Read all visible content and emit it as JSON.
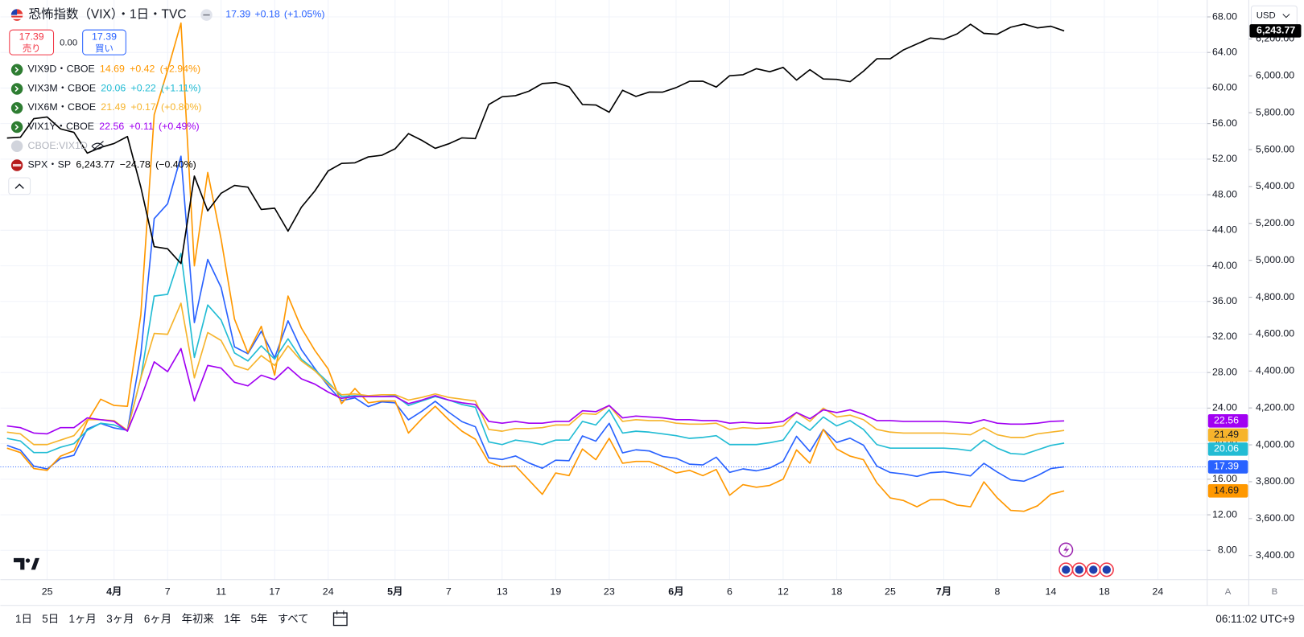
{
  "header": {
    "sell": {
      "price": "17.39",
      "label": "売り"
    },
    "spread": "0.00",
    "buy": {
      "price": "17.39",
      "label": "買い"
    },
    "currency": "USD"
  },
  "legend_hidden": "CBOE:VIX1D",
  "toolbar": {
    "ranges": [
      "1日",
      "5日",
      "1ヶ月",
      "3ヶ月",
      "6ヶ月",
      "年初来",
      "1年",
      "5年",
      "すべて"
    ],
    "time": "06:11:02 UTC+9",
    "scale_buttons": [
      "A",
      "B"
    ]
  },
  "chart_data": {
    "type": "line",
    "categories": [
      null,
      null,
      null,
      "25",
      null,
      null,
      null,
      null,
      "4月",
      null,
      null,
      null,
      "7",
      null,
      null,
      null,
      "11",
      null,
      null,
      null,
      "17",
      null,
      null,
      null,
      "24",
      null,
      null,
      null,
      null,
      "5月",
      null,
      null,
      null,
      "7",
      null,
      null,
      null,
      "13",
      null,
      null,
      null,
      "19",
      null,
      null,
      null,
      "23",
      null,
      null,
      null,
      null,
      "6月",
      null,
      null,
      null,
      "6",
      null,
      null,
      null,
      "12",
      null,
      null,
      null,
      "18",
      null,
      null,
      null,
      "25",
      null,
      null,
      null,
      "7月",
      null,
      null,
      null,
      "8",
      null,
      null,
      null,
      "14",
      null,
      null,
      null,
      "18",
      null,
      null,
      null,
      "24"
    ],
    "ylim": [
      4.7,
      69.9
    ],
    "yticks": [
      {
        "value": 8,
        "label": "8.00"
      },
      {
        "value": 12,
        "label": "12.00"
      },
      {
        "value": 16,
        "label": "16.00"
      },
      {
        "value": 20,
        "label": "20.00"
      },
      {
        "value": 24,
        "label": "24.00"
      },
      {
        "value": 28,
        "label": "28.00"
      },
      {
        "value": 32,
        "label": "32.00"
      },
      {
        "value": 36,
        "label": "36.00"
      },
      {
        "value": 40,
        "label": "40.00"
      },
      {
        "value": 44,
        "label": "44.00"
      },
      {
        "value": 48,
        "label": "48.00"
      },
      {
        "value": 52,
        "label": "52.00"
      },
      {
        "value": 56,
        "label": "56.00"
      },
      {
        "value": 60,
        "label": "60.00"
      },
      {
        "value": 64,
        "label": "64.00"
      },
      {
        "value": 68,
        "label": "68.00"
      }
    ],
    "y2lim": [
      3269,
      6411
    ],
    "y2ticks": [
      {
        "value": 3400,
        "label": "3,400.00"
      },
      {
        "value": 3600,
        "label": "3,600.00"
      },
      {
        "value": 3800,
        "label": "3,800.00"
      },
      {
        "value": 4000,
        "label": "4,000.00"
      },
      {
        "value": 4200,
        "label": "4,200.00"
      },
      {
        "value": 4400,
        "label": "4,400.00"
      },
      {
        "value": 4600,
        "label": "4,600.00"
      },
      {
        "value": 4800,
        "label": "4,800.00"
      },
      {
        "value": 5000,
        "label": "5,000.00"
      },
      {
        "value": 5200,
        "label": "5,200.00"
      },
      {
        "value": 5400,
        "label": "5,400.00"
      },
      {
        "value": 5600,
        "label": "5,600.00"
      },
      {
        "value": 5800,
        "label": "5,800.00"
      },
      {
        "value": 6000,
        "label": "6,000.00"
      },
      {
        "value": 6200,
        "label": "6,200.00"
      }
    ],
    "grid": true,
    "series": [
      {
        "name": "恐怖指数（VIX）・1日・TVC",
        "color": "#2962ff",
        "last": "17.39",
        "change": "+0.18",
        "change_pct": "(+1.05%)",
        "values": [
          19.8,
          19.28,
          17.48,
          17.15,
          18.33,
          18.69,
          21.65,
          22.28,
          21.77,
          21.51,
          30.02,
          45.31,
          46.98,
          52.33,
          33.62,
          40.72,
          37.56,
          30.89,
          30.12,
          32.64,
          29.65,
          33.82,
          30.57,
          28.45,
          26.47,
          24.84,
          25.15,
          24.17,
          24.7,
          24.6,
          22.68,
          23.64,
          24.76,
          23.55,
          22.48,
          21.9,
          18.39,
          18.22,
          18.62,
          17.83,
          17.24,
          18.14,
          18.09,
          20.87,
          20.28,
          22.29,
          18.96,
          19.31,
          19.18,
          18.57,
          18.36,
          17.69,
          17.61,
          18.48,
          16.77,
          17.16,
          16.95,
          17.26,
          18.02,
          20.82,
          19.11,
          21.6,
          20.14,
          20.62,
          19.83,
          17.48,
          16.76,
          16.59,
          16.32,
          16.73,
          16.83,
          16.64,
          16.38,
          17.79,
          16.81,
          15.94,
          15.78,
          16.4,
          17.2,
          17.39,
          null,
          null,
          null,
          null,
          null,
          null,
          null
        ]
      },
      {
        "name": "VIX9D・CBOE",
        "color": "#ff9800",
        "last": "14.69",
        "change": "+0.42",
        "change_pct": "(+2.94%)",
        "values": [
          19.5,
          19.0,
          17.2,
          17.0,
          18.6,
          19.2,
          22.5,
          25.0,
          24.3,
          24.2,
          34.5,
          57,
          62,
          67.3,
          40.0,
          50.5,
          43.0,
          34.0,
          30.2,
          33.2,
          27.7,
          36.6,
          33.0,
          30.5,
          28.4,
          24.5,
          26.2,
          24.6,
          24.8,
          24.8,
          21.2,
          22.8,
          24.2,
          22.7,
          21.4,
          20.5,
          17.9,
          17.4,
          17.5,
          15.9,
          14.3,
          16.7,
          16.4,
          19.4,
          18.2,
          20.6,
          17.8,
          18.0,
          18.0,
          17.4,
          16.7,
          17.0,
          16.4,
          17.1,
          14.2,
          15.4,
          15.1,
          15.3,
          16.0,
          19.3,
          17.8,
          21.6,
          19.4,
          18.6,
          18.2,
          15.6,
          13.9,
          13.6,
          12.9,
          13.7,
          13.7,
          13.1,
          12.9,
          15.7,
          13.9,
          12.5,
          12.4,
          13.0,
          14.3,
          14.69,
          null,
          null,
          null,
          null,
          null,
          null,
          null
        ]
      },
      {
        "name": "VIX3M・CBOE",
        "color": "#22bcd4",
        "last": "20.06",
        "change": "+0.22",
        "change_pct": "(+1.11%)",
        "values": [
          20.6,
          20.3,
          19.0,
          19.0,
          19.6,
          20.0,
          21.5,
          22.3,
          22.1,
          21.5,
          27.4,
          36.6,
          36.8,
          41.4,
          29.7,
          35.6,
          33.9,
          30.2,
          29.3,
          31.0,
          29.5,
          31.8,
          29.5,
          28.3,
          26.9,
          25.3,
          25.4,
          25.3,
          25.3,
          25.4,
          24.3,
          24.8,
          25.3,
          24.9,
          24.4,
          24.1,
          20.2,
          19.9,
          20.4,
          20.2,
          19.9,
          20.4,
          20.4,
          22.5,
          22.1,
          23.8,
          21.2,
          21.4,
          21.3,
          21.1,
          20.9,
          20.6,
          20.7,
          20.9,
          19.9,
          19.9,
          19.9,
          20.1,
          20.4,
          22.5,
          21.5,
          23.0,
          22.0,
          22.6,
          21.6,
          19.9,
          19.5,
          19.5,
          19.5,
          19.5,
          19.5,
          19.4,
          19.2,
          20.4,
          19.5,
          18.9,
          18.8,
          19.3,
          19.8,
          20.06,
          null,
          null,
          null,
          null,
          null,
          null,
          null
        ]
      },
      {
        "name": "VIX6M・CBOE",
        "color": "#f6b42c",
        "last": "21.49",
        "change": "+0.17",
        "change_pct": "(+0.80%)",
        "values": [
          21.3,
          21.1,
          19.9,
          19.9,
          20.4,
          20.9,
          22.7,
          22.7,
          22.6,
          21.5,
          27.4,
          32.4,
          32.3,
          35.8,
          27.4,
          32.5,
          31.6,
          28.8,
          28.3,
          29.9,
          28.8,
          31.0,
          29.3,
          28.2,
          26.7,
          25.5,
          25.6,
          25.4,
          25.5,
          25.5,
          24.9,
          25.2,
          25.6,
          25.2,
          25.0,
          24.8,
          21.6,
          21.4,
          21.7,
          21.7,
          21.8,
          22.1,
          22.1,
          23.4,
          23.3,
          24.3,
          22.5,
          22.7,
          22.6,
          22.6,
          22.3,
          22.2,
          22.2,
          22.3,
          21.6,
          21.8,
          21.7,
          21.8,
          22.0,
          23.5,
          22.5,
          24.0,
          23.0,
          23.2,
          22.7,
          21.6,
          21.3,
          21.2,
          21.2,
          21.2,
          21.2,
          21.1,
          21.0,
          21.8,
          21.0,
          20.7,
          20.7,
          21.1,
          21.3,
          21.49,
          null,
          null,
          null,
          null,
          null,
          null,
          null
        ]
      },
      {
        "name": "VIX1Y・CBOE",
        "color": "#a100f2",
        "last": "22.56",
        "change": "+0.11",
        "change_pct": "(+0.49%)",
        "values": [
          22.0,
          21.8,
          21.2,
          21.1,
          21.8,
          21.8,
          22.9,
          22.7,
          22.5,
          21.4,
          25.1,
          29.2,
          28.1,
          30.7,
          24.8,
          28.8,
          28.5,
          26.9,
          26.5,
          27.7,
          27.2,
          28.6,
          27.3,
          26.7,
          25.8,
          25.1,
          25.3,
          25.3,
          25.3,
          25.3,
          24.5,
          24.9,
          25.4,
          24.9,
          24.6,
          24.4,
          22.5,
          22.3,
          22.5,
          22.3,
          22.3,
          22.5,
          22.5,
          23.7,
          23.6,
          24.3,
          22.9,
          23.1,
          23.0,
          22.9,
          22.7,
          22.7,
          22.6,
          22.6,
          22.3,
          22.4,
          22.3,
          22.3,
          22.5,
          23.5,
          22.8,
          23.8,
          23.5,
          23.8,
          23.3,
          22.6,
          22.6,
          22.5,
          22.5,
          22.5,
          22.5,
          22.4,
          22.3,
          22.7,
          22.3,
          22.2,
          22.2,
          22.3,
          22.5,
          22.56,
          null,
          null,
          null,
          null,
          null,
          null,
          null
        ]
      },
      {
        "name": "SPX・SP",
        "color": "#000000",
        "axis": "y2",
        "last": "6,243.77",
        "change": "−24.78",
        "change_pct": "(−0.40%)",
        "values": [
          5662.89,
          5667.56,
          5767.57,
          5776.65,
          5712.2,
          5693.31,
          5580.94,
          5611.85,
          5633.07,
          5670.97,
          5396.52,
          5074.08,
          5062.25,
          4982.77,
          5456.9,
          5268.05,
          5363.36,
          5405.97,
          5396.63,
          5275.7,
          5282.7,
          5158.2,
          5287.76,
          5375.86,
          5484.77,
          5525.21,
          5528.75,
          5560.83,
          5569.06,
          5604.14,
          5686.67,
          5650.38,
          5606.91,
          5631.28,
          5663.94,
          5659.91,
          5844.19,
          5886.55,
          5892.58,
          5916.93,
          5958.38,
          5963.6,
          5940.46,
          5844.61,
          5842.01,
          5802.82,
          5921.54,
          5888.55,
          5912.17,
          5911.69,
          5935.94,
          5970.37,
          5970.81,
          5939.3,
          6000.36,
          6005.88,
          6038.81,
          6022.24,
          6045.26,
          5976.97,
          6033.11,
          5982.72,
          5980.87,
          5967.84,
          6025.17,
          6092.18,
          6092.16,
          6141.02,
          6173.07,
          6204.95,
          6198.01,
          6227.42,
          6279.35,
          6229.98,
          6225.52,
          6263.26,
          6280.46,
          6259.75,
          6268.56,
          6243.77,
          null,
          null,
          null,
          null,
          null,
          null,
          null
        ]
      }
    ]
  }
}
